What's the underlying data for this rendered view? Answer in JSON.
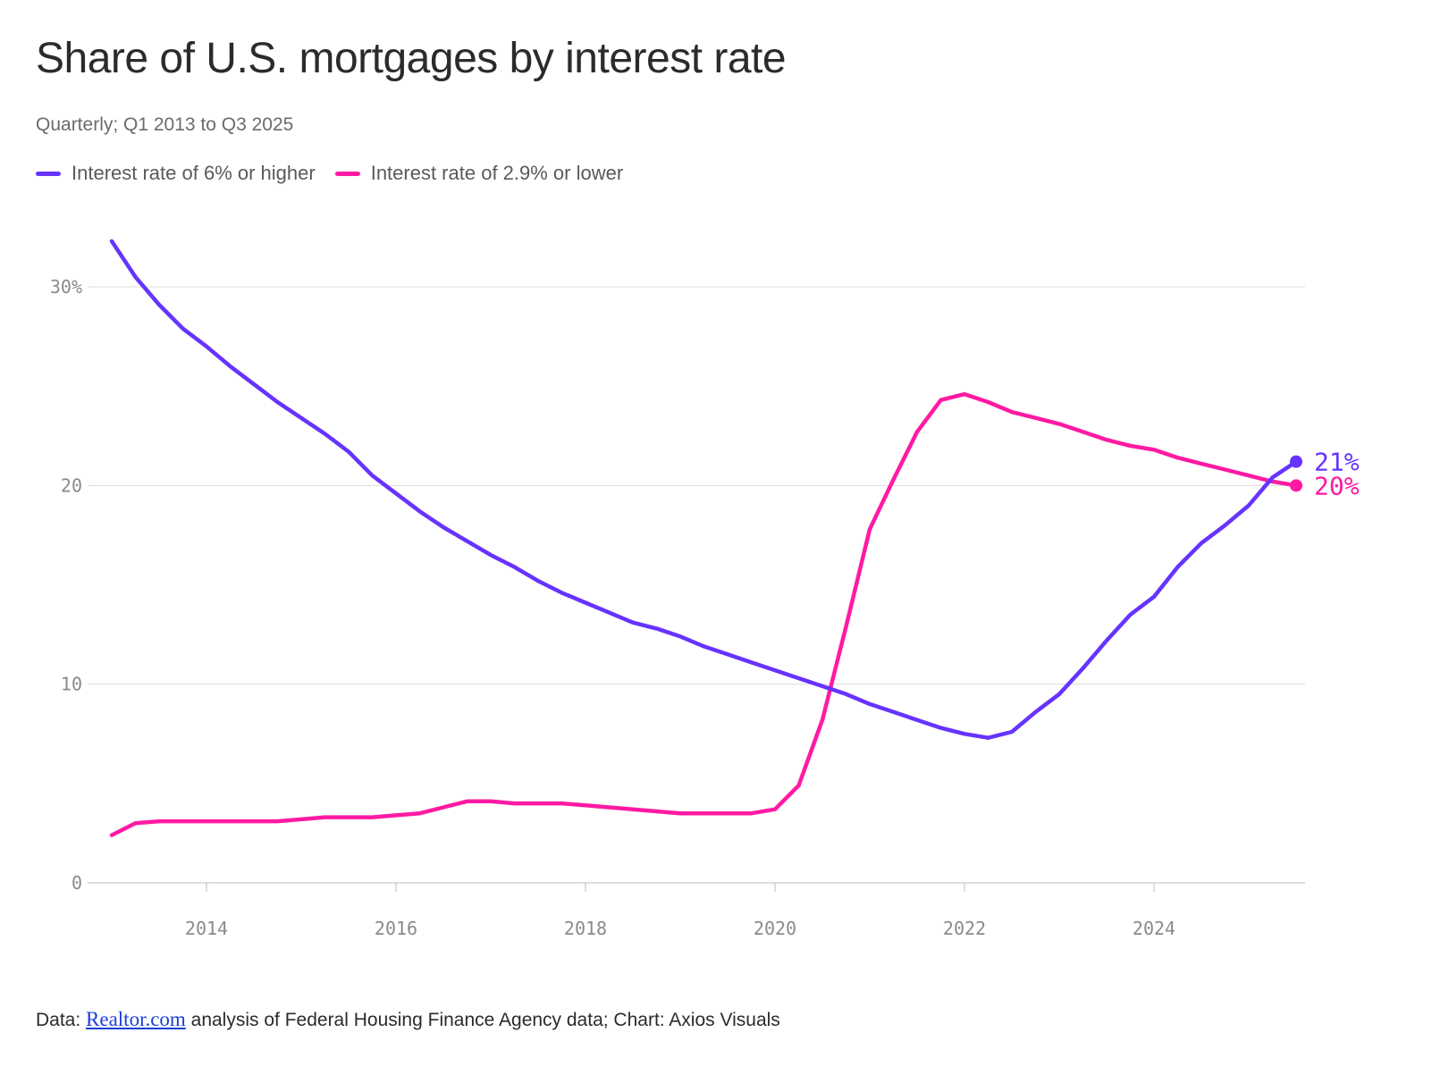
{
  "title": "Share of U.S. mortgages by interest rate",
  "subtitle": "Quarterly; Q1 2013 to Q3 2025",
  "legend": [
    {
      "label": "Interest rate of 6% or higher",
      "color": "#6633ff"
    },
    {
      "label": "Interest rate of 2.9% or lower",
      "color": "#ff1aa3"
    }
  ],
  "footer": {
    "prefix": "Data: ",
    "link_text": "Realtor.com",
    "suffix": " analysis of Federal Housing Finance Agency data; Chart: Axios Visuals"
  },
  "chart_data": {
    "type": "line",
    "title": "Share of U.S. mortgages by interest rate",
    "subtitle": "Quarterly; Q1 2013 to Q3 2025",
    "xlabel": "",
    "ylabel": "",
    "xlim": [
      2013,
      2025.5
    ],
    "ylim": [
      0,
      30
    ],
    "x_ticks": [
      2014,
      2016,
      2018,
      2020,
      2022,
      2024
    ],
    "x_tick_labels": [
      "2014",
      "2016",
      "2018",
      "2020",
      "2022",
      "2024"
    ],
    "y_ticks": [
      0,
      10,
      20,
      30
    ],
    "y_tick_labels": [
      "0",
      "10",
      "20",
      "30%"
    ],
    "grid": "horizontal",
    "x": [
      2013.0,
      2013.25,
      2013.5,
      2013.75,
      2014.0,
      2014.25,
      2014.5,
      2014.75,
      2015.0,
      2015.25,
      2015.5,
      2015.75,
      2016.0,
      2016.25,
      2016.5,
      2016.75,
      2017.0,
      2017.25,
      2017.5,
      2017.75,
      2018.0,
      2018.25,
      2018.5,
      2018.75,
      2019.0,
      2019.25,
      2019.5,
      2019.75,
      2020.0,
      2020.25,
      2020.5,
      2020.75,
      2021.0,
      2021.25,
      2021.5,
      2021.75,
      2022.0,
      2022.25,
      2022.5,
      2022.75,
      2023.0,
      2023.25,
      2023.5,
      2023.75,
      2024.0,
      2024.25,
      2024.5,
      2024.75,
      2025.0,
      2025.25,
      2025.5
    ],
    "series": [
      {
        "name": "Interest rate of 6% or higher",
        "color": "#6633ff",
        "end_label": "21%",
        "values": [
          32.3,
          30.5,
          29.1,
          27.9,
          27.0,
          26.0,
          25.1,
          24.2,
          23.4,
          22.6,
          21.7,
          20.5,
          19.6,
          18.7,
          17.9,
          17.2,
          16.5,
          15.9,
          15.2,
          14.6,
          14.1,
          13.6,
          13.1,
          12.8,
          12.4,
          11.9,
          11.5,
          11.1,
          10.7,
          10.3,
          9.9,
          9.5,
          9.0,
          8.6,
          8.2,
          7.8,
          7.5,
          7.3,
          7.6,
          8.6,
          9.5,
          10.8,
          12.2,
          13.5,
          14.4,
          15.9,
          17.1,
          18.0,
          19.0,
          20.4,
          21.2
        ]
      },
      {
        "name": "Interest rate of 2.9% or lower",
        "color": "#ff1aa3",
        "end_label": "20%",
        "values": [
          2.4,
          3.0,
          3.1,
          3.1,
          3.1,
          3.1,
          3.1,
          3.1,
          3.2,
          3.3,
          3.3,
          3.3,
          3.4,
          3.5,
          3.8,
          4.1,
          4.1,
          4.0,
          4.0,
          4.0,
          3.9,
          3.8,
          3.7,
          3.6,
          3.5,
          3.5,
          3.5,
          3.5,
          3.7,
          4.9,
          8.2,
          12.9,
          17.8,
          20.3,
          22.7,
          24.3,
          24.6,
          24.2,
          23.7,
          23.4,
          23.1,
          22.7,
          22.3,
          22.0,
          21.8,
          21.4,
          21.1,
          20.8,
          20.5,
          20.2,
          20.0
        ]
      }
    ]
  }
}
